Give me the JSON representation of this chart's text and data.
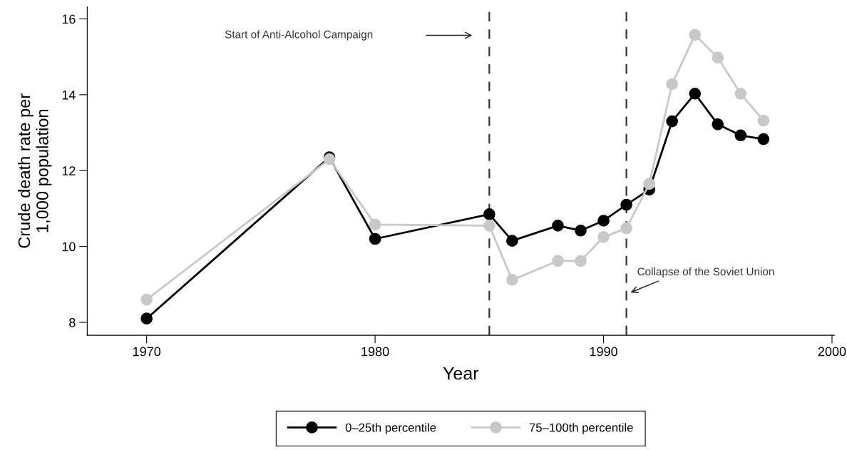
{
  "chart_data": {
    "type": "line",
    "xlabel": "Year",
    "ylabel": "Crude death rate per\n1,000 population",
    "xlim": [
      1967.4,
      2000.1
    ],
    "ylim": [
      7.66,
      16.32
    ],
    "xticks": [
      1970,
      1980,
      1990,
      2000
    ],
    "yticks": [
      8,
      10,
      12,
      14,
      16
    ],
    "grid": false,
    "legend": "bottom",
    "marker": "circle",
    "line_style": "solid",
    "series": [
      {
        "name": "0–25th percentile",
        "color": "#000000",
        "x": [
          1970,
          1978,
          1980,
          1985,
          1986,
          1988,
          1989,
          1990,
          1991,
          1992,
          1993,
          1994,
          1995,
          1996,
          1997
        ],
        "values": [
          8.1,
          12.35,
          10.2,
          10.85,
          10.15,
          10.55,
          10.42,
          10.68,
          11.1,
          11.5,
          13.3,
          14.03,
          13.22,
          12.93,
          12.83
        ]
      },
      {
        "name": "75–100th percentile",
        "color": "#c8c8c8",
        "x": [
          1970,
          1978,
          1980,
          1985,
          1986,
          1988,
          1989,
          1990,
          1991,
          1992,
          1993,
          1994,
          1995,
          1996,
          1997
        ],
        "values": [
          8.6,
          12.3,
          10.58,
          10.55,
          9.12,
          9.62,
          9.62,
          10.25,
          10.48,
          11.65,
          14.28,
          15.58,
          14.98,
          14.03,
          13.32
        ]
      }
    ],
    "ref_lines": [
      {
        "axis": "x",
        "value": 1985,
        "color": "#333333",
        "line_style": "dashed"
      },
      {
        "axis": "x",
        "value": 1991,
        "color": "#333333",
        "line_style": "dashed"
      }
    ],
    "annotations": [
      "Start of Anti-Alcohol Campaign",
      "Collapse of the Soviet Union"
    ]
  }
}
